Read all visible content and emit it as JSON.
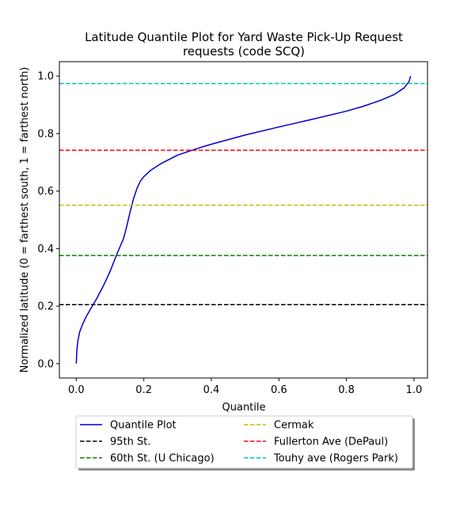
{
  "chart_data": {
    "type": "line",
    "title_lines": [
      "Latitude Quantile Plot for Yard Waste Pick-Up Request",
      "requests (code SCQ)"
    ],
    "xlabel": "Quantile",
    "ylabel": "Normalized latitude (0 = farthest south, 1 = farthest north)",
    "xlim": [
      -0.05,
      1.04
    ],
    "ylim": [
      -0.05,
      1.05
    ],
    "xticks": [
      0.0,
      0.2,
      0.4,
      0.6,
      0.8,
      1.0
    ],
    "xtick_labels": [
      "0.0",
      "0.2",
      "0.4",
      "0.6",
      "0.8",
      "1.0"
    ],
    "yticks": [
      0.0,
      0.2,
      0.4,
      0.6,
      0.8,
      1.0
    ],
    "ytick_labels": [
      "0.0",
      "0.2",
      "0.4",
      "0.6",
      "0.8",
      "1.0"
    ],
    "grid": false,
    "legend_placement": "below",
    "series": [
      {
        "name": "Quantile Plot",
        "color": "#0000cc",
        "style": "solid",
        "x": [
          0.0,
          0.002,
          0.005,
          0.01,
          0.02,
          0.03,
          0.04,
          0.05,
          0.06,
          0.08,
          0.1,
          0.12,
          0.14,
          0.15,
          0.16,
          0.17,
          0.18,
          0.19,
          0.2,
          0.22,
          0.25,
          0.3,
          0.35,
          0.4,
          0.5,
          0.6,
          0.7,
          0.8,
          0.85,
          0.9,
          0.94,
          0.97,
          0.985,
          0.99
        ],
        "y": [
          0.0,
          0.05,
          0.08,
          0.11,
          0.14,
          0.165,
          0.185,
          0.205,
          0.225,
          0.27,
          0.32,
          0.38,
          0.435,
          0.48,
          0.53,
          0.575,
          0.61,
          0.635,
          0.65,
          0.672,
          0.695,
          0.725,
          0.745,
          0.763,
          0.795,
          0.823,
          0.85,
          0.878,
          0.895,
          0.915,
          0.935,
          0.958,
          0.98,
          1.0
        ]
      },
      {
        "name": "95th St.",
        "color": "#000000",
        "style": "dashed",
        "hline": 0.205
      },
      {
        "name": "60th St. (U Chicago)",
        "color": "#008000",
        "style": "dashed",
        "hline": 0.376
      },
      {
        "name": "Cermak",
        "color": "#bfbf00",
        "style": "dashed",
        "hline": 0.551
      },
      {
        "name": "Fullerton Ave (DePaul)",
        "color": "#ff0000",
        "style": "dashed",
        "hline": 0.742
      },
      {
        "name": "Touhy ave (Rogers Park)",
        "color": "#00bfbf",
        "style": "dashed",
        "hline": 0.974
      }
    ]
  }
}
